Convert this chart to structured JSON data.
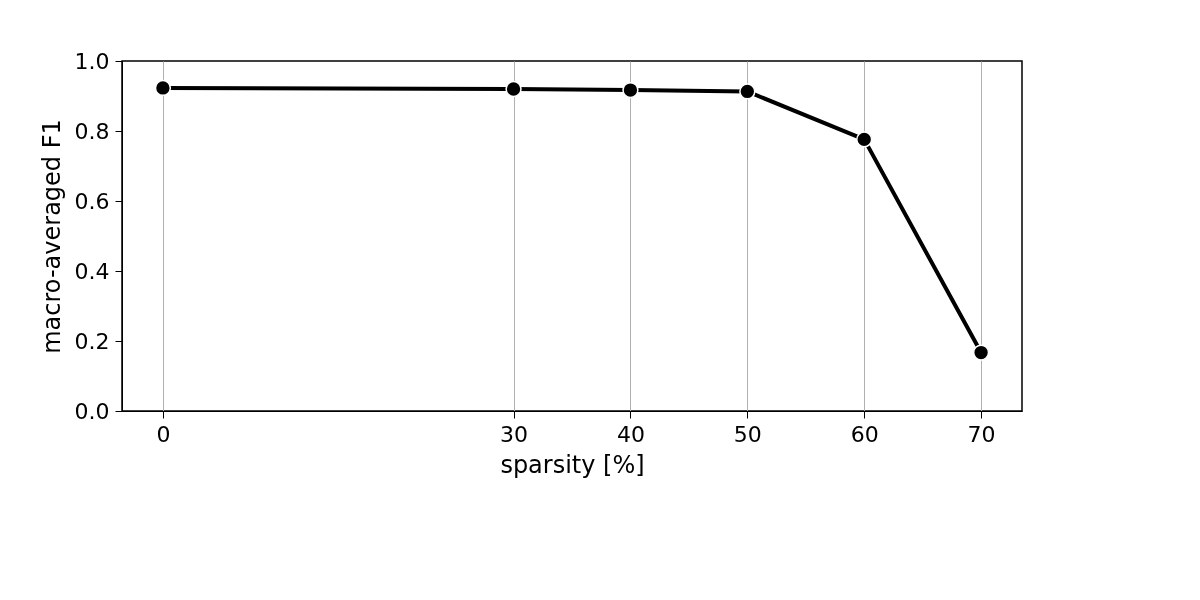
{
  "chart_data": {
    "type": "line",
    "xlabel": "sparsity [%]",
    "ylabel": "macro-averaged F1",
    "x": [
      0,
      30,
      40,
      50,
      60,
      70
    ],
    "series": [
      {
        "color": "#000000",
        "values": [
          0.923,
          0.92,
          0.917,
          0.913,
          0.776,
          0.167
        ]
      }
    ],
    "xlim": [
      -3.5,
      73.5
    ],
    "xticks": [
      0,
      30,
      40,
      50,
      60,
      70
    ],
    "ylim": [
      0,
      1
    ],
    "yticks": [
      {
        "value": 0,
        "label": "0.0"
      },
      0.2,
      0.4,
      0.6,
      0.8,
      {
        "value": 1,
        "label": "1.0"
      }
    ],
    "grid": "x",
    "marker": "circle",
    "line_style": "solid",
    "legend": false
  }
}
